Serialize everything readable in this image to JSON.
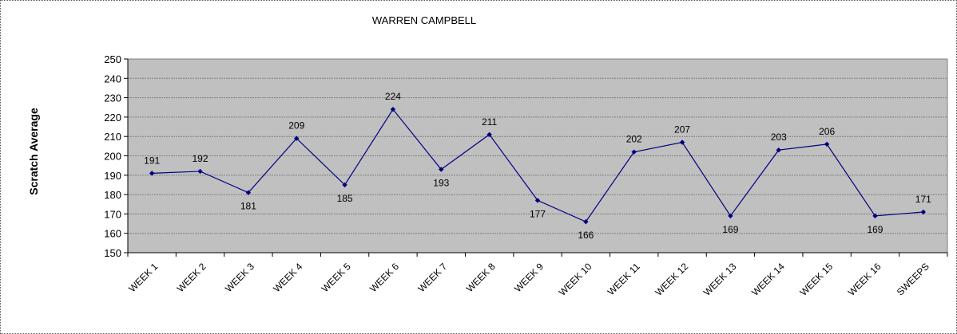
{
  "chart_data": {
    "type": "line",
    "title": "WARREN CAMPBELL",
    "ylabel": "Scratch Average",
    "xlabel": "",
    "ylim": [
      150,
      250
    ],
    "yticks": [
      150,
      160,
      170,
      180,
      190,
      200,
      210,
      220,
      230,
      240,
      250
    ],
    "grid": true,
    "legend": "none",
    "categories": [
      "WEEK 1",
      "WEEK 2",
      "WEEK 3",
      "WEEK 4",
      "WEEK 5",
      "WEEK 6",
      "WEEK 7",
      "WEEK 8",
      "WEEK 9",
      "WEEK 10",
      "WEEK 11",
      "WEEK 12",
      "WEEK 13",
      "WEEK 14",
      "WEEK 15",
      "WEEK 16",
      "SWEEPS"
    ],
    "series": [
      {
        "values": [
          191,
          192,
          181,
          209,
          185,
          224,
          193,
          211,
          177,
          166,
          202,
          207,
          169,
          203,
          206,
          169,
          171
        ],
        "label_position": [
          "above",
          "above",
          "below",
          "above",
          "below",
          "above",
          "below",
          "above",
          "below",
          "below",
          "above",
          "above",
          "below",
          "above",
          "above",
          "below",
          "above"
        ]
      }
    ],
    "colors": {
      "line": "#000080",
      "plot_background": "#c0c0c0",
      "gridline": "#808080"
    }
  }
}
